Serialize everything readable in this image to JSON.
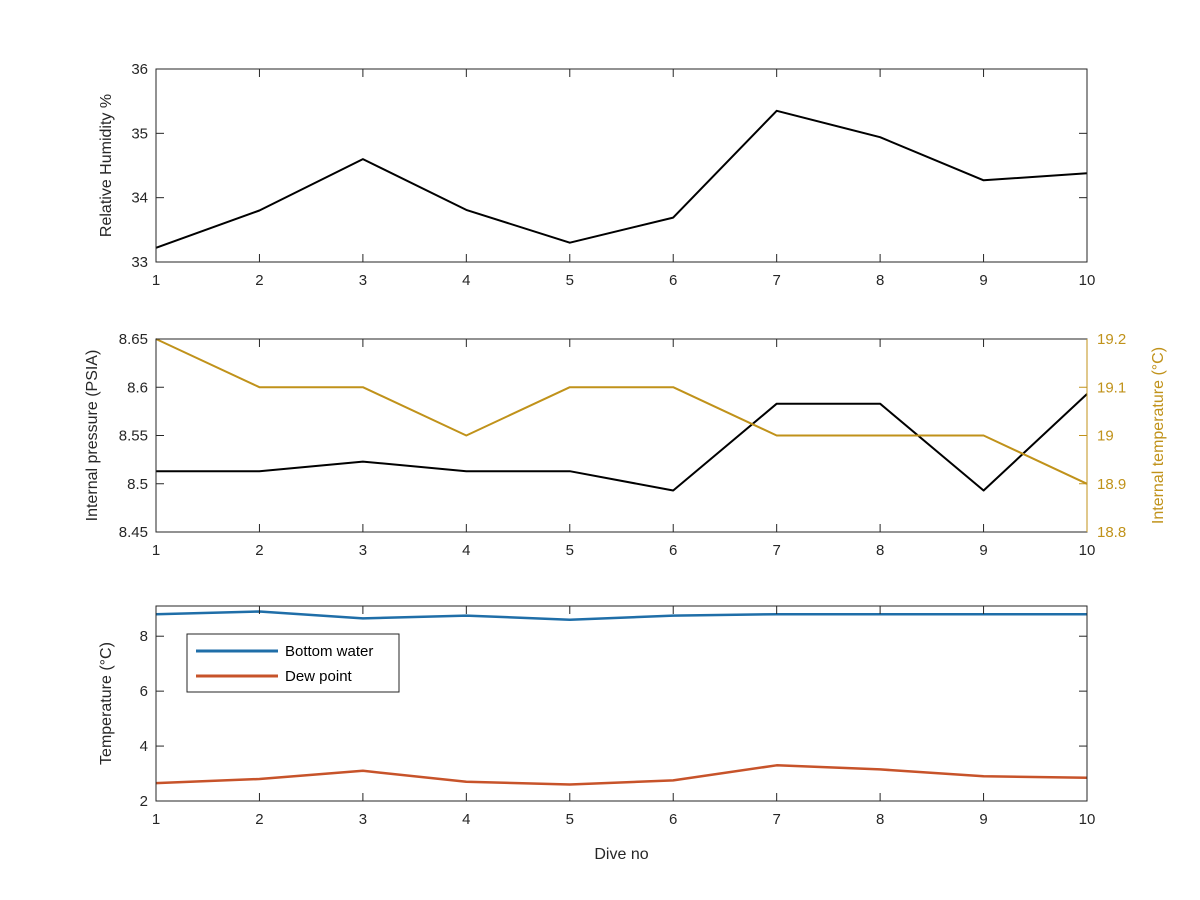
{
  "chart_data": [
    {
      "type": "line",
      "title": "",
      "xlabel": "",
      "ylabel": "Relative Humidity %",
      "x": [
        1,
        2,
        3,
        4,
        5,
        6,
        7,
        8,
        9,
        10
      ],
      "xlim": [
        1,
        10
      ],
      "ylim": [
        33,
        36
      ],
      "xticks": [
        "1",
        "2",
        "3",
        "4",
        "5",
        "6",
        "7",
        "8",
        "9",
        "10"
      ],
      "yticks": [
        "33",
        "34",
        "35",
        "36"
      ],
      "grid": false,
      "series": [
        {
          "values": [
            33.22,
            33.8,
            34.6,
            33.81,
            33.3,
            33.69,
            35.35,
            34.94,
            34.27,
            34.38
          ],
          "color": "#000000"
        }
      ]
    },
    {
      "type": "line",
      "title": "",
      "xlabel": "",
      "ylabel": "Internal pressure (PSIA)",
      "ylabel_right": "Internal temperature (°C)",
      "x": [
        1,
        2,
        3,
        4,
        5,
        6,
        7,
        8,
        9,
        10
      ],
      "xlim": [
        1,
        10
      ],
      "ylim": [
        8.45,
        8.65
      ],
      "ylim_right": [
        18.8,
        19.2
      ],
      "xticks": [
        "1",
        "2",
        "3",
        "4",
        "5",
        "6",
        "7",
        "8",
        "9",
        "10"
      ],
      "yticks": [
        "8.45",
        "8.5",
        "8.55",
        "8.6",
        "8.65"
      ],
      "yticks_right": [
        "18.8",
        "18.9",
        "19",
        "19.1",
        "19.2"
      ],
      "grid": false,
      "series": [
        {
          "axis": "left",
          "values": [
            8.513,
            8.513,
            8.523,
            8.513,
            8.513,
            8.493,
            8.583,
            8.583,
            8.493,
            8.593
          ],
          "color": "#000000"
        },
        {
          "axis": "right",
          "values": [
            19.2,
            19.1,
            19.1,
            19.0,
            19.1,
            19.1,
            19.0,
            19.0,
            19.0,
            18.9
          ],
          "color": "#c0921a"
        }
      ]
    },
    {
      "type": "line",
      "title": "",
      "xlabel": "Dive no",
      "ylabel": "Temperature (°C)",
      "x": [
        1,
        2,
        3,
        4,
        5,
        6,
        7,
        8,
        9,
        10
      ],
      "xlim": [
        1,
        10
      ],
      "ylim": [
        2,
        9.1
      ],
      "xticks": [
        "1",
        "2",
        "3",
        "4",
        "5",
        "6",
        "7",
        "8",
        "9",
        "10"
      ],
      "yticks": [
        "2",
        "4",
        "6",
        "8"
      ],
      "grid": false,
      "legend": "top-left",
      "series": [
        {
          "name": "Bottom water",
          "values": [
            8.8,
            8.9,
            8.65,
            8.75,
            8.6,
            8.75,
            8.8,
            8.8,
            8.8,
            8.8
          ],
          "color": "#1f6ea8"
        },
        {
          "name": "Dew point",
          "values": [
            2.65,
            2.8,
            3.1,
            2.7,
            2.6,
            2.75,
            3.3,
            3.15,
            2.9,
            2.85
          ],
          "color": "#c7532a"
        }
      ]
    }
  ]
}
